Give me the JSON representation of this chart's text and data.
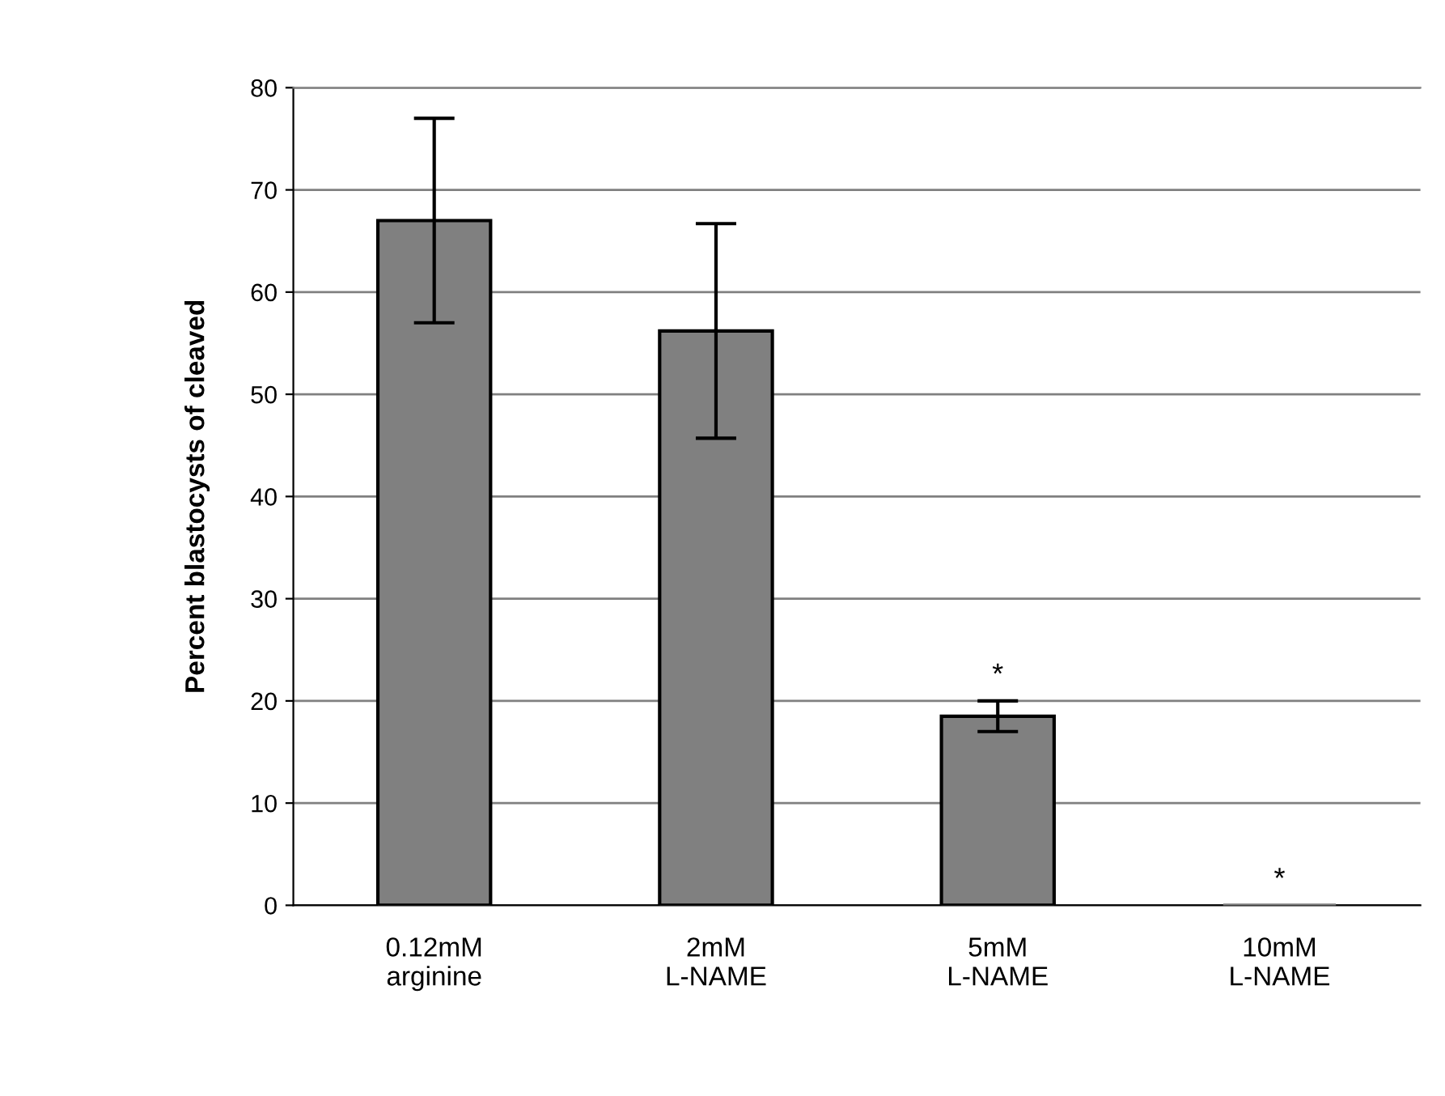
{
  "chart_data": {
    "type": "bar",
    "ylabel": "Percent blastocysts of cleaved",
    "categories": [
      "0.12mM\narginine",
      "2mM\nL-NAME",
      "5mM\nL-NAME",
      "10mM\nL-NAME"
    ],
    "values": [
      67,
      56.2,
      18.5,
      0
    ],
    "errors": [
      10,
      10.5,
      1.5,
      null
    ],
    "color": "#808080",
    "ylim": [
      0,
      80
    ],
    "yticks": [
      0,
      10,
      20,
      30,
      40,
      50,
      60,
      70,
      80
    ],
    "grid": "y",
    "annotations": [
      {
        "text": "*",
        "x": "5mM\nL-NAME",
        "y": 20
      },
      {
        "text": "*",
        "x": "10mM\nL-NAME",
        "y": 0
      }
    ]
  }
}
